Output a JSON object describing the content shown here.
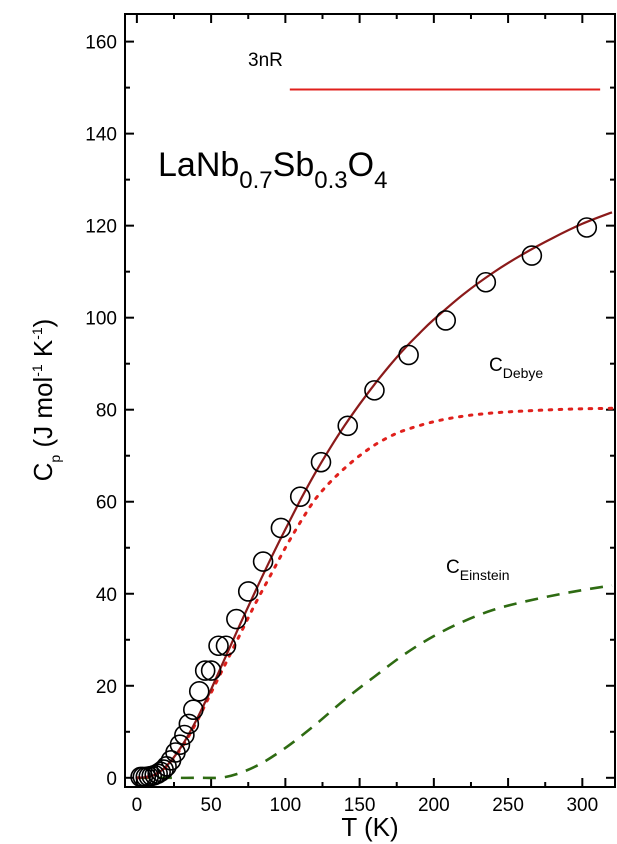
{
  "chart_data": {
    "type": "scatter",
    "xlabel": "T (K)",
    "ylabel_main": "C",
    "ylabel_sub": "p",
    "ylabel_rest": " (J mol",
    "ylabel_sup1": "-1",
    "ylabel_rest2": " K",
    "ylabel_sup2": "-1",
    "ylabel_close": ")",
    "xlim": [
      -8,
      322
    ],
    "ylim": [
      -2,
      166
    ],
    "xticks": [
      0,
      50,
      100,
      150,
      200,
      250,
      300
    ],
    "yticks": [
      0,
      20,
      40,
      60,
      80,
      100,
      120,
      140,
      160
    ],
    "compound": {
      "el1": "LaNb",
      "s1": "0.7",
      "el2": "Sb",
      "s2": "0.3",
      "el3": "O",
      "s3": "4"
    },
    "annotations": {
      "three_nr": "3nR",
      "debye_main": "C",
      "debye_sub": "Debye",
      "einstein_main": "C",
      "einstein_sub": "Einstein"
    },
    "colors": {
      "fit": "#8b1a1a",
      "debye": "#e0201c",
      "einstein": "#2e6b12",
      "threenr": "#e0201c",
      "points": "#000000"
    },
    "three_nr_line": {
      "x": [
        103,
        312
      ],
      "y": 149.6
    },
    "measured": {
      "x": [
        2.5,
        4,
        6,
        8,
        10,
        12,
        14,
        16,
        18,
        20,
        23,
        26,
        29,
        32,
        35,
        38,
        42,
        46,
        50,
        55,
        60,
        67,
        75,
        85,
        97,
        110,
        124,
        142,
        160,
        183,
        208,
        235,
        266,
        303
      ],
      "y": [
        0.2,
        0.2,
        0.2,
        0.3,
        0.4,
        0.6,
        0.9,
        1.3,
        1.8,
        2.5,
        3.8,
        5.5,
        7.2,
        9.3,
        11.7,
        14.8,
        18.8,
        23.3,
        23.3,
        28.7,
        28.7,
        34.5,
        40.5,
        47,
        54.3,
        61.1,
        68.6,
        76.5,
        84.2,
        91.9,
        99.4,
        107.7,
        113.5,
        119.6
      ]
    },
    "fit_curve": {
      "x": [
        0,
        5,
        10,
        15,
        20,
        25,
        30,
        35,
        40,
        45,
        50,
        60,
        70,
        80,
        90,
        100,
        110,
        120,
        130,
        140,
        150,
        160,
        170,
        180,
        190,
        200,
        220,
        240,
        260,
        280,
        300,
        320
      ],
      "y": [
        0,
        0.1,
        0.4,
        1.2,
        2.6,
        4.5,
        6.8,
        9.5,
        12.5,
        15.8,
        19.2,
        26.5,
        33.7,
        40.7,
        47.5,
        54,
        60.3,
        66.2,
        71.6,
        76.6,
        81.2,
        85.5,
        89.5,
        93.2,
        96.5,
        99.6,
        105.1,
        109.8,
        113.8,
        117.3,
        120.4,
        122.9
      ]
    },
    "debye_curve": {
      "x": [
        0,
        5,
        10,
        15,
        20,
        30,
        40,
        50,
        60,
        70,
        80,
        90,
        100,
        110,
        120,
        130,
        140,
        150,
        160,
        170,
        180,
        200,
        220,
        240,
        260,
        280,
        300,
        320
      ],
      "y": [
        0,
        0.1,
        0.4,
        1.2,
        2.5,
        6.5,
        12,
        18.5,
        25,
        31.5,
        38,
        44,
        50,
        55.5,
        60.5,
        64.2,
        67.3,
        70,
        72.3,
        74.1,
        75.5,
        77.4,
        78.6,
        79.3,
        79.7,
        80,
        80.2,
        80.3
      ]
    },
    "einstein_curve": {
      "x": [
        0,
        20,
        40,
        60,
        80,
        100,
        120,
        140,
        160,
        180,
        200,
        220,
        240,
        260,
        280,
        300,
        320
      ],
      "y": [
        0,
        0,
        0,
        0.2,
        2.5,
        6.5,
        11.5,
        17,
        22,
        26.8,
        30.8,
        34,
        36.5,
        38.2,
        39.6,
        40.8,
        41.8
      ]
    }
  }
}
